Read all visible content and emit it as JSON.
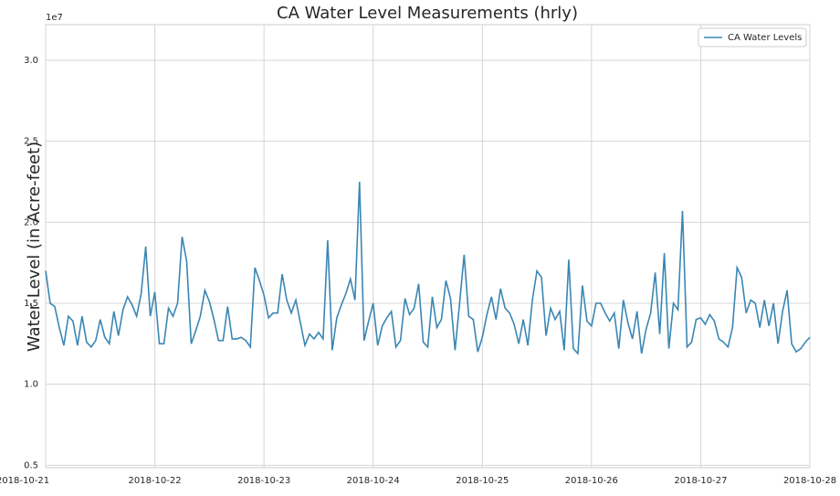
{
  "chart_data": {
    "type": "line",
    "title": "CA Water Level Measurements (hrly)",
    "y_label": "Water Level (in Acre-feet)",
    "y_offset_label": "1e7",
    "grid": true,
    "legend_position": "upper right",
    "xlim": [
      "2018-10-21",
      "2018-10-28"
    ],
    "xticks": [
      "2018-10-21",
      "2018-10-22",
      "2018-10-23",
      "2018-10-24",
      "2018-10-25",
      "2018-10-26",
      "2018-10-27",
      "2018-10-28"
    ],
    "ylim": [
      0.485,
      3.22
    ],
    "yticks": [
      {
        "value": 0.5,
        "label": "0.5"
      },
      {
        "value": 1,
        "label": "1.0"
      },
      {
        "value": 1.5,
        "label": "1.5"
      },
      {
        "value": 2,
        "label": "2.0"
      },
      {
        "value": 2.5,
        "label": "2.5"
      },
      {
        "value": 3,
        "label": "3.0"
      }
    ],
    "x": [
      "2018-10-21 00:00",
      "2018-10-21 01:00",
      "2018-10-21 02:00",
      "2018-10-21 03:00",
      "2018-10-21 04:00",
      "2018-10-21 05:00",
      "2018-10-21 06:00",
      "2018-10-21 07:00",
      "2018-10-21 08:00",
      "2018-10-21 09:00",
      "2018-10-21 10:00",
      "2018-10-21 11:00",
      "2018-10-21 12:00",
      "2018-10-21 13:00",
      "2018-10-21 14:00",
      "2018-10-21 15:00",
      "2018-10-21 16:00",
      "2018-10-21 17:00",
      "2018-10-21 18:00",
      "2018-10-21 19:00",
      "2018-10-21 20:00",
      "2018-10-21 21:00",
      "2018-10-21 22:00",
      "2018-10-21 23:00",
      "2018-10-22 00:00",
      "2018-10-22 01:00",
      "2018-10-22 02:00",
      "2018-10-22 03:00",
      "2018-10-22 04:00",
      "2018-10-22 05:00",
      "2018-10-22 06:00",
      "2018-10-22 07:00",
      "2018-10-22 08:00",
      "2018-10-22 09:00",
      "2018-10-22 10:00",
      "2018-10-22 11:00",
      "2018-10-22 12:00",
      "2018-10-22 13:00",
      "2018-10-22 14:00",
      "2018-10-22 15:00",
      "2018-10-22 16:00",
      "2018-10-22 17:00",
      "2018-10-22 18:00",
      "2018-10-22 19:00",
      "2018-10-22 20:00",
      "2018-10-22 21:00",
      "2018-10-22 22:00",
      "2018-10-22 23:00",
      "2018-10-23 00:00",
      "2018-10-23 01:00",
      "2018-10-23 02:00",
      "2018-10-23 03:00",
      "2018-10-23 04:00",
      "2018-10-23 05:00",
      "2018-10-23 06:00",
      "2018-10-23 07:00",
      "2018-10-23 08:00",
      "2018-10-23 09:00",
      "2018-10-23 10:00",
      "2018-10-23 11:00",
      "2018-10-23 12:00",
      "2018-10-23 13:00",
      "2018-10-23 14:00",
      "2018-10-23 15:00",
      "2018-10-23 16:00",
      "2018-10-23 17:00",
      "2018-10-23 18:00",
      "2018-10-23 19:00",
      "2018-10-23 20:00",
      "2018-10-23 21:00",
      "2018-10-23 22:00",
      "2018-10-23 23:00",
      "2018-10-24 00:00",
      "2018-10-24 01:00",
      "2018-10-24 02:00",
      "2018-10-24 03:00",
      "2018-10-24 04:00",
      "2018-10-24 05:00",
      "2018-10-24 06:00",
      "2018-10-24 07:00",
      "2018-10-24 08:00",
      "2018-10-24 09:00",
      "2018-10-24 10:00",
      "2018-10-24 11:00",
      "2018-10-24 12:00",
      "2018-10-24 13:00",
      "2018-10-24 14:00",
      "2018-10-24 15:00",
      "2018-10-24 16:00",
      "2018-10-24 17:00",
      "2018-10-24 18:00",
      "2018-10-24 19:00",
      "2018-10-24 20:00",
      "2018-10-24 21:00",
      "2018-10-24 22:00",
      "2018-10-24 23:00",
      "2018-10-25 00:00",
      "2018-10-25 01:00",
      "2018-10-25 02:00",
      "2018-10-25 03:00",
      "2018-10-25 04:00",
      "2018-10-25 05:00",
      "2018-10-25 06:00",
      "2018-10-25 07:00",
      "2018-10-25 08:00",
      "2018-10-25 09:00",
      "2018-10-25 10:00",
      "2018-10-25 11:00",
      "2018-10-25 12:00",
      "2018-10-25 13:00",
      "2018-10-25 14:00",
      "2018-10-25 15:00",
      "2018-10-25 16:00",
      "2018-10-25 17:00",
      "2018-10-25 18:00",
      "2018-10-25 19:00",
      "2018-10-25 20:00",
      "2018-10-25 21:00",
      "2018-10-25 22:00",
      "2018-10-25 23:00",
      "2018-10-26 00:00",
      "2018-10-26 01:00",
      "2018-10-26 02:00",
      "2018-10-26 03:00",
      "2018-10-26 04:00",
      "2018-10-26 05:00",
      "2018-10-26 06:00",
      "2018-10-26 07:00",
      "2018-10-26 08:00",
      "2018-10-26 09:00",
      "2018-10-26 10:00",
      "2018-10-26 11:00",
      "2018-10-26 12:00",
      "2018-10-26 13:00",
      "2018-10-26 14:00",
      "2018-10-26 15:00",
      "2018-10-26 16:00",
      "2018-10-26 17:00",
      "2018-10-26 18:00",
      "2018-10-26 19:00",
      "2018-10-26 20:00",
      "2018-10-26 21:00",
      "2018-10-26 22:00",
      "2018-10-26 23:00",
      "2018-10-27 00:00",
      "2018-10-27 01:00",
      "2018-10-27 02:00",
      "2018-10-27 03:00",
      "2018-10-27 04:00",
      "2018-10-27 05:00",
      "2018-10-27 06:00",
      "2018-10-27 07:00",
      "2018-10-27 08:00",
      "2018-10-27 09:00",
      "2018-10-27 10:00",
      "2018-10-27 11:00",
      "2018-10-27 12:00",
      "2018-10-27 13:00",
      "2018-10-27 14:00",
      "2018-10-27 15:00",
      "2018-10-27 16:00",
      "2018-10-27 17:00",
      "2018-10-27 18:00",
      "2018-10-27 19:00",
      "2018-10-27 20:00",
      "2018-10-27 21:00",
      "2018-10-27 22:00",
      "2018-10-27 23:00",
      "2018-10-28 00:00"
    ],
    "series": [
      {
        "name": "CA Water Levels",
        "color": "#3a86b4",
        "values": [
          1.7,
          1.5,
          1.48,
          1.35,
          1.24,
          1.42,
          1.39,
          1.24,
          1.42,
          1.26,
          1.23,
          1.27,
          1.4,
          1.29,
          1.25,
          1.45,
          1.3,
          1.46,
          1.54,
          1.49,
          1.42,
          1.56,
          1.85,
          1.42,
          1.57,
          1.25,
          1.25,
          1.47,
          1.42,
          1.5,
          1.91,
          1.76,
          1.25,
          1.33,
          1.42,
          1.58,
          1.51,
          1.4,
          1.27,
          1.27,
          1.48,
          1.28,
          1.28,
          1.29,
          1.27,
          1.23,
          1.72,
          1.64,
          1.55,
          1.41,
          1.44,
          1.44,
          1.68,
          1.52,
          1.44,
          1.52,
          1.38,
          1.24,
          1.31,
          1.28,
          1.32,
          1.28,
          1.89,
          1.21,
          1.41,
          1.49,
          1.56,
          1.65,
          1.52,
          2.25,
          1.27,
          1.39,
          1.5,
          1.24,
          1.36,
          1.41,
          1.45,
          1.23,
          1.27,
          1.53,
          1.43,
          1.47,
          1.62,
          1.26,
          1.23,
          1.54,
          1.35,
          1.4,
          1.64,
          1.53,
          1.21,
          1.5,
          1.8,
          1.42,
          1.4,
          1.2,
          1.29,
          1.43,
          1.54,
          1.4,
          1.59,
          1.47,
          1.44,
          1.37,
          1.25,
          1.4,
          1.24,
          1.52,
          1.7,
          1.66,
          1.3,
          1.47,
          1.4,
          1.45,
          1.21,
          1.77,
          1.22,
          1.19,
          1.61,
          1.39,
          1.36,
          1.5,
          1.5,
          1.44,
          1.39,
          1.44,
          1.22,
          1.52,
          1.38,
          1.28,
          1.45,
          1.19,
          1.34,
          1.44,
          1.69,
          1.31,
          1.81,
          1.22,
          1.5,
          1.46,
          2.07,
          1.23,
          1.26,
          1.4,
          1.41,
          1.37,
          1.43,
          1.39,
          1.28,
          1.26,
          1.23,
          1.35,
          1.72,
          1.66,
          1.44,
          1.52,
          1.5,
          1.35,
          1.52,
          1.36,
          1.5,
          1.25,
          1.45,
          1.58,
          1.25,
          1.2,
          1.22,
          1.26,
          1.29
        ]
      }
    ]
  }
}
